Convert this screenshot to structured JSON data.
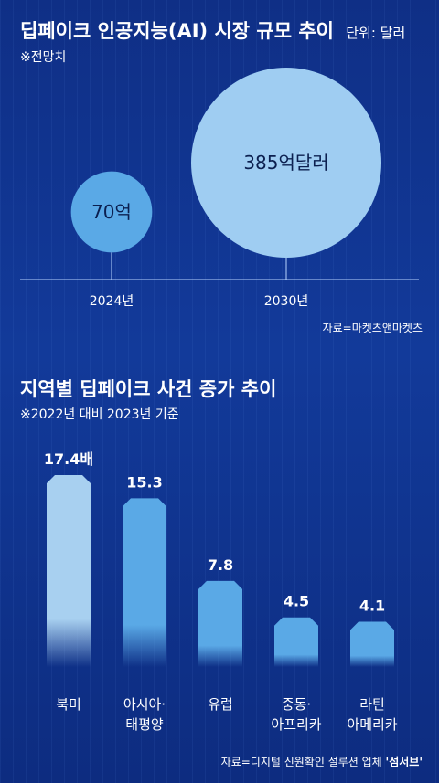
{
  "chart_data": [
    {
      "type": "bubble",
      "title": "딥페이크 인공지능(AI) 시장 규모 추이",
      "unit_note": "단위: 달러",
      "subtitle": "※전망치",
      "categories": [
        "2024년",
        "2030년"
      ],
      "values": [
        70,
        385
      ],
      "value_labels": [
        "70억",
        "385억달러"
      ],
      "source": "자료=마켓츠앤마켓츠",
      "colors": {
        "small": "#5aa9e6",
        "large": "#9fcdf2",
        "text": "#0b1f4f",
        "line": "#b8d4ff"
      }
    },
    {
      "type": "bar",
      "title": "지역별 딥페이크 사건 증가 추이",
      "subtitle": "※2022년 대비 2023년 기준",
      "categories": [
        [
          "북미"
        ],
        [
          "아시아·",
          "태평양"
        ],
        [
          "유럽"
        ],
        [
          "중동·",
          "아프리카"
        ],
        [
          "라틴",
          "아메리카"
        ]
      ],
      "values": [
        17.4,
        15.3,
        7.8,
        4.5,
        4.1
      ],
      "value_labels": [
        "17.4배",
        "15.3",
        "7.8",
        "4.5",
        "4.1"
      ],
      "ylim": [
        0,
        17.4
      ],
      "source": "자료=디지털 신원확인 설루션 업체 ",
      "source_emphasis": "'섬서브'",
      "colors": {
        "first": "#a8d0f0",
        "rest": "#5aa9e6"
      }
    }
  ]
}
